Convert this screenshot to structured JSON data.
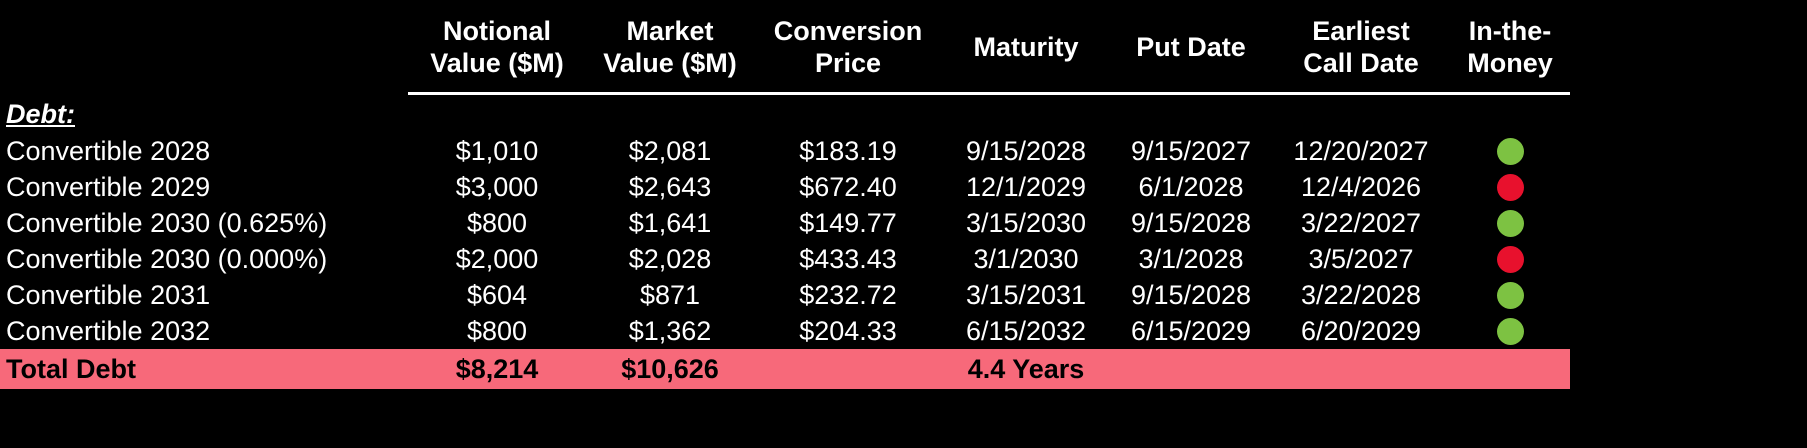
{
  "table": {
    "headers": [
      "",
      "Notional\nValue ($M)",
      "Market\nValue ($M)",
      "Conversion\nPrice",
      "Maturity",
      "Put Date",
      "Earliest\nCall Date",
      "In-the-\nMoney"
    ],
    "section_label": "Debt:",
    "rows": [
      {
        "name": "Convertible 2028",
        "notional": "$1,010",
        "market": "$2,081",
        "conversion": "$183.19",
        "maturity": "9/15/2028",
        "put": "9/15/2027",
        "call": "12/20/2027",
        "itm": "green"
      },
      {
        "name": "Convertible 2029",
        "notional": "$3,000",
        "market": "$2,643",
        "conversion": "$672.40",
        "maturity": "12/1/2029",
        "put": "6/1/2028",
        "call": "12/4/2026",
        "itm": "red"
      },
      {
        "name": "Convertible 2030 (0.625%)",
        "notional": "$800",
        "market": "$1,641",
        "conversion": "$149.77",
        "maturity": "3/15/2030",
        "put": "9/15/2028",
        "call": "3/22/2027",
        "itm": "green"
      },
      {
        "name": "Convertible 2030 (0.000%)",
        "notional": "$2,000",
        "market": "$2,028",
        "conversion": "$433.43",
        "maturity": "3/1/2030",
        "put": "3/1/2028",
        "call": "3/5/2027",
        "itm": "red"
      },
      {
        "name": "Convertible 2031",
        "notional": "$604",
        "market": "$871",
        "conversion": "$232.72",
        "maturity": "3/15/2031",
        "put": "9/15/2028",
        "call": "3/22/2028",
        "itm": "green"
      },
      {
        "name": "Convertible 2032",
        "notional": "$800",
        "market": "$1,362",
        "conversion": "$204.33",
        "maturity": "6/15/2032",
        "put": "6/15/2029",
        "call": "6/20/2029",
        "itm": "green"
      }
    ],
    "total": {
      "label": "Total Debt",
      "notional": "$8,214",
      "market": "$10,626",
      "conversion": "",
      "maturity": "4.4 Years",
      "put": "",
      "call": "",
      "itm": ""
    }
  },
  "colors": {
    "green": "#7DC242",
    "red": "#E8112D",
    "total_bg": "#F7697A",
    "background": "#000000",
    "text": "#FFFFFF"
  }
}
